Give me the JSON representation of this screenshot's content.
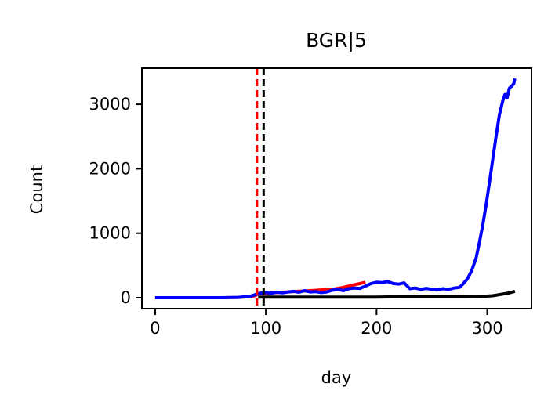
{
  "chart_data": {
    "type": "line",
    "title": "BGR|5",
    "xlabel": "day",
    "ylabel": "Count",
    "xlim": [
      -12,
      340
    ],
    "ylim": [
      -170,
      3560
    ],
    "xticks": [
      0,
      100,
      200,
      300
    ],
    "yticks": [
      0,
      1000,
      2000,
      3000
    ],
    "grid": false,
    "legend": "none",
    "series": [
      {
        "color": "#ff0000",
        "x": [
          0,
          20,
          40,
          60,
          75,
          85,
          90,
          93,
          100,
          110,
          120,
          130,
          140,
          150,
          160,
          170,
          180,
          190
        ],
        "values": [
          0,
          0,
          0,
          0,
          5,
          15,
          30,
          60,
          70,
          80,
          90,
          100,
          110,
          120,
          130,
          160,
          200,
          240
        ]
      },
      {
        "color": "#000000",
        "x": [
          93,
          120,
          150,
          180,
          200,
          220,
          240,
          260,
          280,
          295,
          305,
          310,
          315,
          320,
          325
        ],
        "values": [
          10,
          10,
          10,
          10,
          10,
          15,
          15,
          15,
          15,
          20,
          30,
          45,
          60,
          75,
          100
        ]
      },
      {
        "color": "#0000ff",
        "x": [
          0,
          20,
          40,
          60,
          75,
          85,
          90,
          95,
          100,
          105,
          110,
          115,
          120,
          125,
          130,
          135,
          140,
          145,
          150,
          155,
          160,
          165,
          170,
          175,
          180,
          185,
          190,
          195,
          200,
          205,
          210,
          215,
          220,
          225,
          230,
          235,
          240,
          245,
          250,
          255,
          260,
          265,
          270,
          275,
          278,
          282,
          286,
          290,
          293,
          296,
          299,
          302,
          305,
          308,
          311,
          314,
          316,
          318,
          320,
          322,
          324,
          325
        ],
        "values": [
          0,
          0,
          0,
          0,
          5,
          20,
          45,
          70,
          80,
          70,
          85,
          75,
          90,
          100,
          85,
          110,
          90,
          95,
          80,
          90,
          115,
          130,
          110,
          140,
          150,
          145,
          180,
          220,
          240,
          235,
          250,
          220,
          210,
          230,
          140,
          150,
          130,
          145,
          130,
          120,
          140,
          130,
          150,
          160,
          210,
          290,
          420,
          620,
          860,
          1130,
          1440,
          1780,
          2150,
          2500,
          2840,
          3050,
          3150,
          3100,
          3250,
          3280,
          3320,
          3400
        ]
      }
    ],
    "vlines": [
      {
        "x": 92,
        "color": "#ff0000",
        "style": "dashed"
      },
      {
        "x": 98,
        "color": "#000000",
        "style": "dashed"
      }
    ]
  }
}
